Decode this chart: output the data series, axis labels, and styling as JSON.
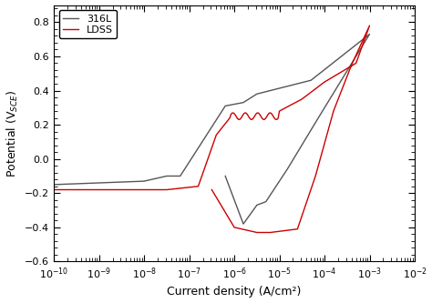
{
  "title": "",
  "xlabel": "Current density (A/cm²)",
  "ylabel": "Potential (V$_{SCE}$)",
  "xlim_log": [
    -10,
    -2
  ],
  "ylim": [
    -0.6,
    0.9
  ],
  "yticks": [
    -0.6,
    -0.4,
    -0.2,
    0.0,
    0.2,
    0.4,
    0.6,
    0.8
  ],
  "legend_316L": "316L",
  "legend_LDSS": "LDSS",
  "color_316L": "#555555",
  "color_LDSS": "#cc0000",
  "background_color": "#ffffff",
  "linewidth": 1.0
}
